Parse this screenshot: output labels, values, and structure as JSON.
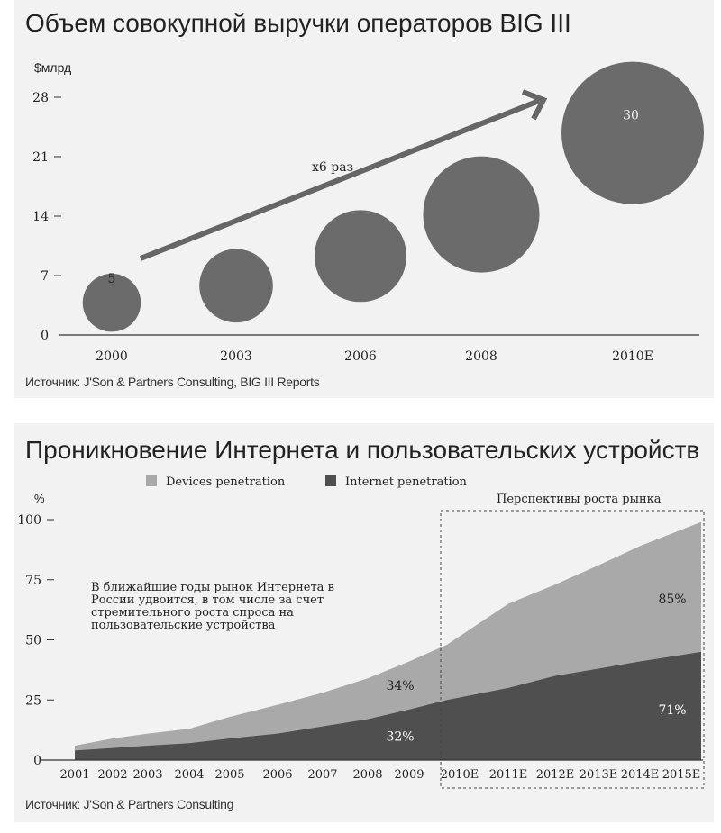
{
  "chart_data": [
    {
      "type": "scatter",
      "title": "Объем совокупной выручки операторов BIG III",
      "ylabel": "$млрд",
      "ylim": [
        0,
        28
      ],
      "yticks": [
        "0",
        "7",
        "14",
        "21",
        "28"
      ],
      "categories": [
        "2000",
        "2003",
        "2006",
        "2008",
        "2010E"
      ],
      "values": [
        5,
        8,
        12.5,
        20,
        30
      ],
      "center_y": [
        3.8,
        5.8,
        9.3,
        14.2,
        23.8
      ],
      "point_labels": [
        "5",
        "",
        "",
        "",
        "30"
      ],
      "annotation": "х6 раз",
      "bubble_color": "#6b6b6b",
      "source": "Источник: J'Son & Partners Consulting, BIG III Reports"
    },
    {
      "type": "area",
      "title": "Проникновение Интернета и пользовательских устройств",
      "ylabel": "%",
      "ylim": [
        0,
        100
      ],
      "yticks": [
        "0",
        "25",
        "50",
        "75",
        "100"
      ],
      "categories": [
        "2001",
        "2002",
        "2003",
        "2004",
        "2005",
        "2006",
        "2007",
        "2008",
        "2009",
        "2010E",
        "2011E",
        "2012E",
        "2013E",
        "2014E",
        "2015E"
      ],
      "series": [
        {
          "name": "Devices penetration",
          "color": "#a9a9a9",
          "values": [
            6,
            9,
            11,
            13,
            18,
            23,
            28,
            34,
            41,
            48,
            65,
            73,
            81,
            89,
            99
          ]
        },
        {
          "name": "Internet penetration",
          "color": "#4f4f4f",
          "values": [
            4,
            5,
            6,
            7,
            9,
            11,
            14,
            17,
            21,
            25,
            30,
            35,
            38,
            41,
            45
          ]
        }
      ],
      "data_labels": [
        {
          "text": "34%",
          "x": "2009",
          "y": 31
        },
        {
          "text": "32%",
          "x": "2009",
          "y": 10
        },
        {
          "text": "85%",
          "x": "2015E",
          "y": 67
        },
        {
          "text": "71%",
          "x": "2015E",
          "y": 21
        }
      ],
      "highlight_label": "Перспективы роста рынка",
      "highlight_range": [
        "2010E",
        "2015E"
      ],
      "annotation": "В ближайшие годы рынок Интернета в России удвоится, в том числе за счет стремительного роста спроса на пользовательские устройства",
      "source": "Источник: J'Son & Partners Consulting"
    }
  ]
}
